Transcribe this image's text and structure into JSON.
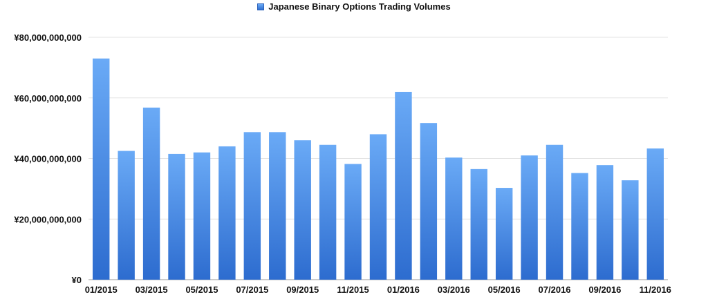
{
  "chart_data": {
    "type": "bar",
    "title": "",
    "legend_position": "top-center",
    "series": [
      {
        "name": "Japanese Binary Options Trading Volumes",
        "color": "#4a8ce8",
        "values": [
          73000000000,
          42500000000,
          56800000000,
          41500000000,
          42000000000,
          44000000000,
          48700000000,
          48700000000,
          46000000000,
          44500000000,
          38200000000,
          48000000000,
          62000000000,
          51700000000,
          40300000000,
          36500000000,
          30300000000,
          41000000000,
          44500000000,
          35200000000,
          37800000000,
          32800000000,
          43300000000
        ]
      }
    ],
    "categories": [
      "01/2015",
      "02/2015",
      "03/2015",
      "04/2015",
      "05/2015",
      "06/2015",
      "07/2015",
      "08/2015",
      "09/2015",
      "10/2015",
      "11/2015",
      "12/2015",
      "01/2016",
      "02/2016",
      "03/2016",
      "04/2016",
      "05/2016",
      "06/2016",
      "07/2016",
      "08/2016",
      "09/2016",
      "10/2016",
      "11/2016"
    ],
    "x_tick_labels": [
      "01/2015",
      "03/2015",
      "05/2015",
      "07/2015",
      "09/2015",
      "11/2015",
      "01/2016",
      "03/2016",
      "05/2016",
      "07/2016",
      "09/2016",
      "11/2016"
    ],
    "y_ticks": [
      0,
      20000000000,
      40000000000,
      60000000000,
      80000000000
    ],
    "y_tick_labels": [
      "¥0",
      "¥20,000,000,000",
      "¥40,000,000,000",
      "¥60,000,000,000",
      "¥80,000,000,000"
    ],
    "ylim": [
      0,
      80000000000
    ],
    "grid": true,
    "xlabel": "",
    "ylabel": ""
  }
}
